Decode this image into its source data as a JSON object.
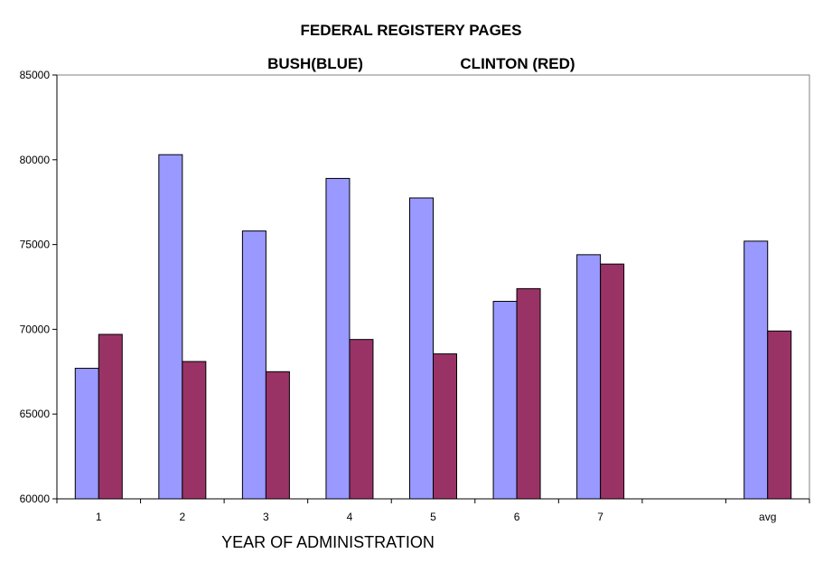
{
  "chart_data": {
    "type": "bar",
    "title": "FEDERAL REGISTERY PAGES",
    "subtitle_left": "BUSH(BLUE)",
    "subtitle_right": "CLINTON (RED)",
    "xlabel": "YEAR OF ADMINISTRATION",
    "ylabel": "",
    "ylim": [
      60000,
      85000
    ],
    "yticks": [
      "60000",
      "65000",
      "70000",
      "75000",
      "80000",
      "85000"
    ],
    "categories": [
      "1",
      "2",
      "3",
      "4",
      "5",
      "6",
      "7",
      "",
      "avg"
    ],
    "series": [
      {
        "name": "BUSH",
        "color": "#9999FF",
        "values": [
          67700,
          80300,
          75800,
          78900,
          77750,
          71650,
          74400,
          null,
          75200
        ]
      },
      {
        "name": "CLINTON",
        "color": "#993366",
        "values": [
          69700,
          68100,
          67500,
          69400,
          68550,
          72400,
          73850,
          null,
          69900
        ]
      }
    ],
    "grid": false,
    "legend": "none"
  }
}
